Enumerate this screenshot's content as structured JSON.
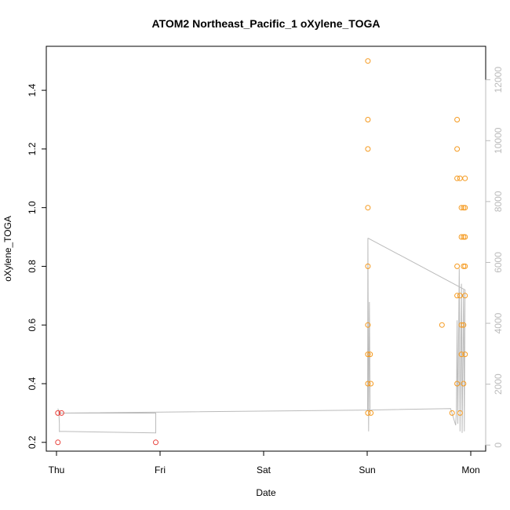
{
  "chart_data": {
    "type": "scatter",
    "title": "ATOM2 Northeast_Pacific_1 oXylene_TOGA",
    "xlabel": "Date",
    "ylabel": "oXylene_TOGA",
    "x_ticks": [
      "Thu",
      "Fri",
      "Sat",
      "Sun",
      "Mon"
    ],
    "y_ticks": [
      "0.2",
      "0.4",
      "0.6",
      "0.8",
      "1.0",
      "1.2",
      "1.4"
    ],
    "y2_ticks": [
      "0",
      "2000",
      "4000",
      "6000",
      "8000",
      "10000",
      "12000"
    ],
    "xlim": [
      "Thu 00:00",
      "Mon 02:00"
    ],
    "ylim": [
      0.17,
      1.55
    ],
    "y2lim": [
      -200,
      13100
    ],
    "grid": false,
    "colors": {
      "early": "#e8403a",
      "late": "#f59a1f",
      "line": "#bbbbbb"
    },
    "series": [
      {
        "color": "#e8403a",
        "points": [
          {
            "x": "Thu 00:20",
            "y": 0.3
          },
          {
            "x": "Thu 00:20",
            "y": 0.2
          },
          {
            "x": "Thu 01:10",
            "y": 0.3
          },
          {
            "x": "Thu 23:00",
            "y": 0.2
          }
        ]
      },
      {
        "color": "#f59a1f",
        "points": [
          {
            "x": "Sun 00:10",
            "y": 1.5
          },
          {
            "x": "Sun 00:10",
            "y": 1.3
          },
          {
            "x": "Sun 00:10",
            "y": 1.2
          },
          {
            "x": "Sun 00:10",
            "y": 1.0
          },
          {
            "x": "Sun 00:10",
            "y": 0.8
          },
          {
            "x": "Sun 00:10",
            "y": 0.6
          },
          {
            "x": "Sun 00:10",
            "y": 0.5
          },
          {
            "x": "Sun 00:10",
            "y": 0.4
          },
          {
            "x": "Sun 00:10",
            "y": 0.3
          },
          {
            "x": "Sun 00:40",
            "y": 0.5
          },
          {
            "x": "Sun 00:50",
            "y": 0.4
          },
          {
            "x": "Sun 00:50",
            "y": 0.3
          },
          {
            "x": "Sun 17:20",
            "y": 0.6
          },
          {
            "x": "Sun 19:40",
            "y": 0.3
          },
          {
            "x": "Sun 20:50",
            "y": 1.3
          },
          {
            "x": "Sun 20:50",
            "y": 1.2
          },
          {
            "x": "Sun 20:50",
            "y": 1.1
          },
          {
            "x": "Sun 20:50",
            "y": 0.8
          },
          {
            "x": "Sun 20:50",
            "y": 0.7
          },
          {
            "x": "Sun 20:50",
            "y": 0.4
          },
          {
            "x": "Sun 21:30",
            "y": 1.1
          },
          {
            "x": "Sun 21:30",
            "y": 0.7
          },
          {
            "x": "Sun 21:30",
            "y": 0.3
          },
          {
            "x": "Sun 21:50",
            "y": 1.0
          },
          {
            "x": "Sun 21:50",
            "y": 0.9
          },
          {
            "x": "Sun 21:50",
            "y": 0.6
          },
          {
            "x": "Sun 21:50",
            "y": 0.5
          },
          {
            "x": "Sun 22:20",
            "y": 1.0
          },
          {
            "x": "Sun 22:20",
            "y": 0.9
          },
          {
            "x": "Sun 22:20",
            "y": 0.8
          },
          {
            "x": "Sun 22:20",
            "y": 0.6
          },
          {
            "x": "Sun 22:20",
            "y": 0.4
          },
          {
            "x": "Sun 22:40",
            "y": 1.1
          },
          {
            "x": "Sun 22:40",
            "y": 1.0
          },
          {
            "x": "Sun 22:40",
            "y": 0.9
          },
          {
            "x": "Sun 22:40",
            "y": 0.8
          },
          {
            "x": "Sun 22:40",
            "y": 0.7
          },
          {
            "x": "Sun 22:40",
            "y": 0.5
          }
        ]
      }
    ],
    "secondary_line": {
      "axis": "right",
      "color": "#bbbbbb",
      "points": [
        {
          "x": "Thu 00:20",
          "y": 1200
        },
        {
          "x": "Thu 00:30",
          "y": 1100
        },
        {
          "x": "Thu 00:30",
          "y": 1150
        },
        {
          "x": "Thu 00:40",
          "y": 700
        },
        {
          "x": "Thu 00:40",
          "y": 430
        },
        {
          "x": "Thu 00:40",
          "y": 450
        },
        {
          "x": "Thu 23:00",
          "y": 400
        },
        {
          "x": "Thu 23:00",
          "y": 1050
        },
        {
          "x": "Thu 00:40",
          "y": 1050
        },
        {
          "x": "Sun 00:05",
          "y": 1150
        },
        {
          "x": "Sun 00:10",
          "y": 6800
        },
        {
          "x": "Sun 00:20",
          "y": 450
        },
        {
          "x": "Sun 00:30",
          "y": 4700
        },
        {
          "x": "Sun 00:40",
          "y": 1200
        },
        {
          "x": "Sun 00:30",
          "y": 1150
        },
        {
          "x": "Sun 19:20",
          "y": 1200
        },
        {
          "x": "Sun 20:30",
          "y": 650
        },
        {
          "x": "Sun 20:40",
          "y": 1150
        },
        {
          "x": "Sun 20:50",
          "y": 4100
        },
        {
          "x": "Sun 21:00",
          "y": 700
        },
        {
          "x": "Sun 21:20",
          "y": 5800
        },
        {
          "x": "Sun 21:30",
          "y": 450
        },
        {
          "x": "Sun 21:50",
          "y": 5300
        },
        {
          "x": "Sun 22:00",
          "y": 400
        },
        {
          "x": "Sun 22:20",
          "y": 5100
        },
        {
          "x": "Sun 22:30",
          "y": 450
        },
        {
          "x": "Sun 22:40",
          "y": 5100
        },
        {
          "x": "Sun 00:10",
          "y": 6800
        }
      ]
    }
  }
}
